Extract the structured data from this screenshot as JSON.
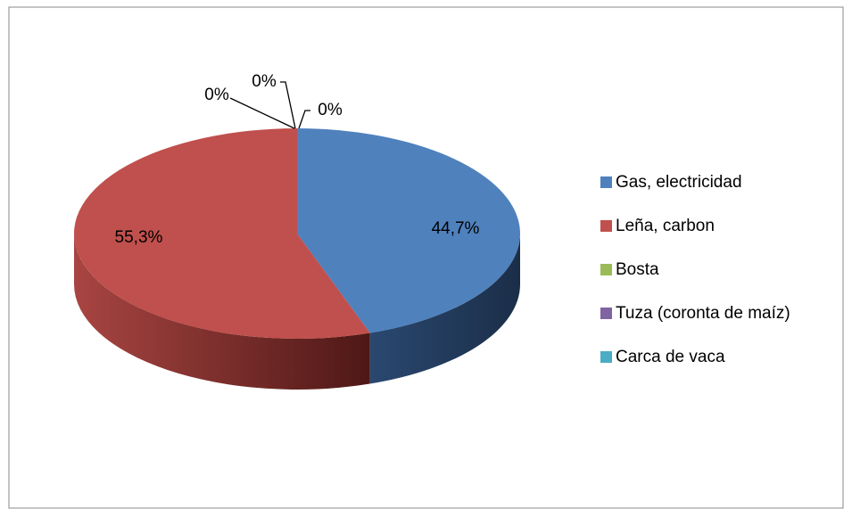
{
  "chart_data": {
    "type": "pie",
    "categories": [
      "Gas, electricidad",
      "Leña, carbon",
      "Bosta",
      "Tuza (coronta de maíz)",
      "Carca de vaca"
    ],
    "values": [
      44.7,
      55.3,
      0,
      0,
      0
    ],
    "value_labels": [
      "44,7%",
      "55,3%",
      "0%",
      "0%",
      "0%"
    ],
    "colors": [
      "#4f81bd",
      "#c0504d",
      "#9bbb59",
      "#8064a2",
      "#4bacc6"
    ],
    "legend": "right"
  }
}
